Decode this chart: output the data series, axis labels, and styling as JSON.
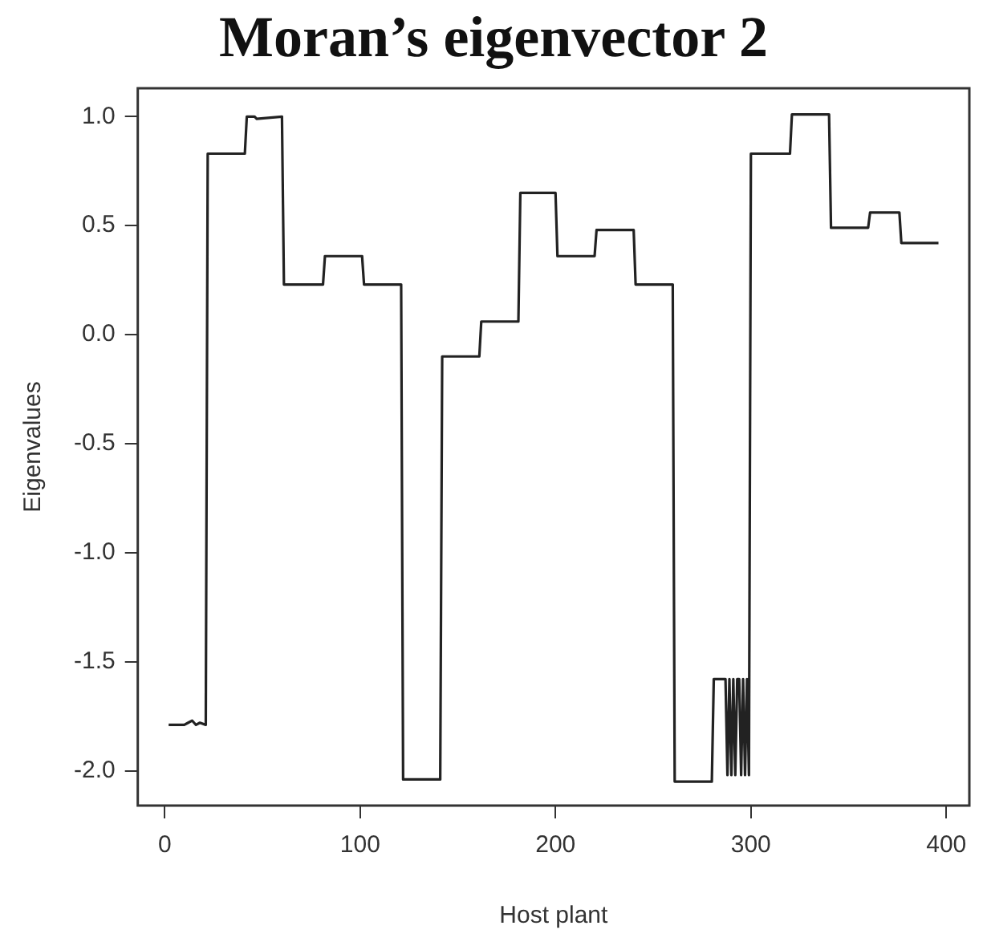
{
  "chart_data": {
    "type": "line",
    "title": "Moran’s eigenvector 2",
    "xlabel": "Host plant",
    "ylabel": "Eigenvalues",
    "x": [
      2,
      10,
      12,
      14,
      16,
      18,
      21,
      22,
      41,
      42,
      46,
      47,
      60,
      61,
      81,
      82,
      101,
      102,
      121,
      122,
      141,
      142,
      161,
      162,
      181,
      182,
      200,
      201,
      220,
      221,
      240,
      241,
      260,
      261,
      280,
      281,
      287,
      288,
      289,
      290,
      291,
      292,
      293,
      294,
      295,
      296,
      297,
      298,
      299,
      300,
      320,
      321,
      340,
      341,
      360,
      361,
      376,
      377,
      396
    ],
    "series": [
      {
        "color": "#222222",
        "values": [
          -1.79,
          -1.79,
          -1.78,
          -1.77,
          -1.79,
          -1.78,
          -1.79,
          0.83,
          0.83,
          1.0,
          1.0,
          0.99,
          1.0,
          0.23,
          0.23,
          0.36,
          0.36,
          0.23,
          0.23,
          -2.04,
          -2.04,
          -0.1,
          -0.1,
          0.06,
          0.06,
          0.65,
          0.65,
          0.36,
          0.36,
          0.48,
          0.48,
          0.23,
          0.23,
          -2.05,
          -2.05,
          -1.58,
          -1.58,
          -2.02,
          -1.58,
          -2.02,
          -1.58,
          -2.02,
          -1.58,
          -1.58,
          -2.02,
          -1.58,
          -2.02,
          -1.58,
          -2.02,
          0.83,
          0.83,
          1.01,
          1.01,
          0.49,
          0.49,
          0.56,
          0.56,
          0.42,
          0.42
        ]
      }
    ],
    "xlim": [
      -13.8,
      411.8
    ],
    "ylim": [
      -2.16,
      1.13
    ],
    "xticks": [
      0,
      100,
      200,
      300,
      400
    ],
    "yticks": [
      {
        "value": -2,
        "label": "-2.0"
      },
      {
        "value": -1.5,
        "label": "-1.5"
      },
      {
        "value": -1,
        "label": "-1.0"
      },
      {
        "value": -0.5,
        "label": "-0.5"
      },
      {
        "value": 0,
        "label": "0.0"
      },
      {
        "value": 0.5,
        "label": "0.5"
      },
      {
        "value": 1,
        "label": "1.0"
      }
    ],
    "grid": false,
    "legend": false,
    "marker": "none",
    "line_style": "solid"
  }
}
